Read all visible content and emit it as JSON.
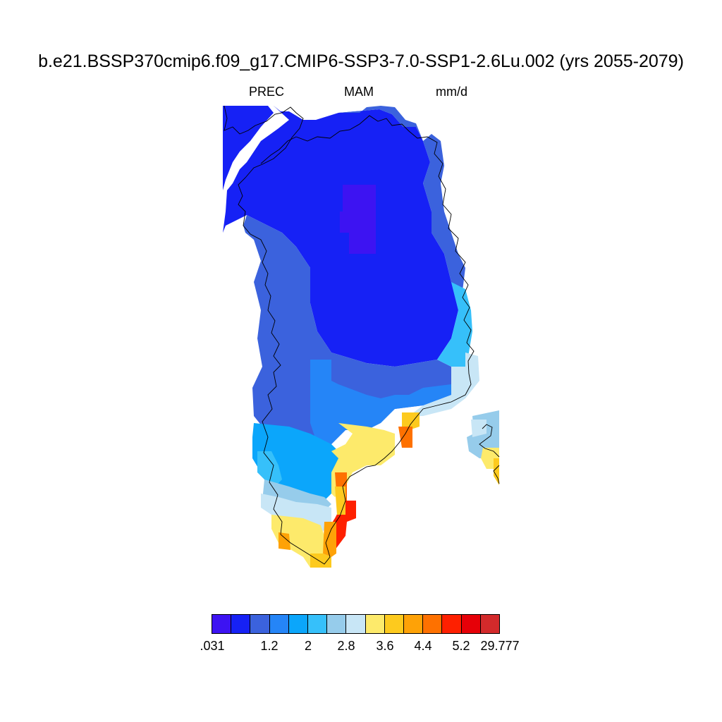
{
  "title": "b.e21.BSSP370cmip6.f09_g17.CMIP6-SSP3-7.0-SSP1-2.6Lu.002 (yrs 2055-2079)",
  "subtitle": {
    "variable": "PREC",
    "season": "MAM",
    "units": "mm/d"
  },
  "colorbar": {
    "colors": [
      "#3d13f2",
      "#1621f5",
      "#3b62dd",
      "#2585f7",
      "#0ba6fb",
      "#36c0fa",
      "#96cceb",
      "#c8e6f6",
      "#fdea6b",
      "#fdca1e",
      "#fea207",
      "#fe7100",
      "#fe2000",
      "#e60008",
      "#d32a2b"
    ],
    "labels": [
      ".031",
      "1.2",
      "2",
      "2.8",
      "3.6",
      "4.4",
      "5.2",
      "29.777"
    ]
  },
  "map": {
    "region": "Greenland",
    "field_levels": {
      "far_north_interior_min": "#3d13f2",
      "north_interior": "#1621f5",
      "west_and_central": "#3b62dd",
      "southwest": "#0ba6fb",
      "southeast_coast": "#fe2000"
    }
  }
}
